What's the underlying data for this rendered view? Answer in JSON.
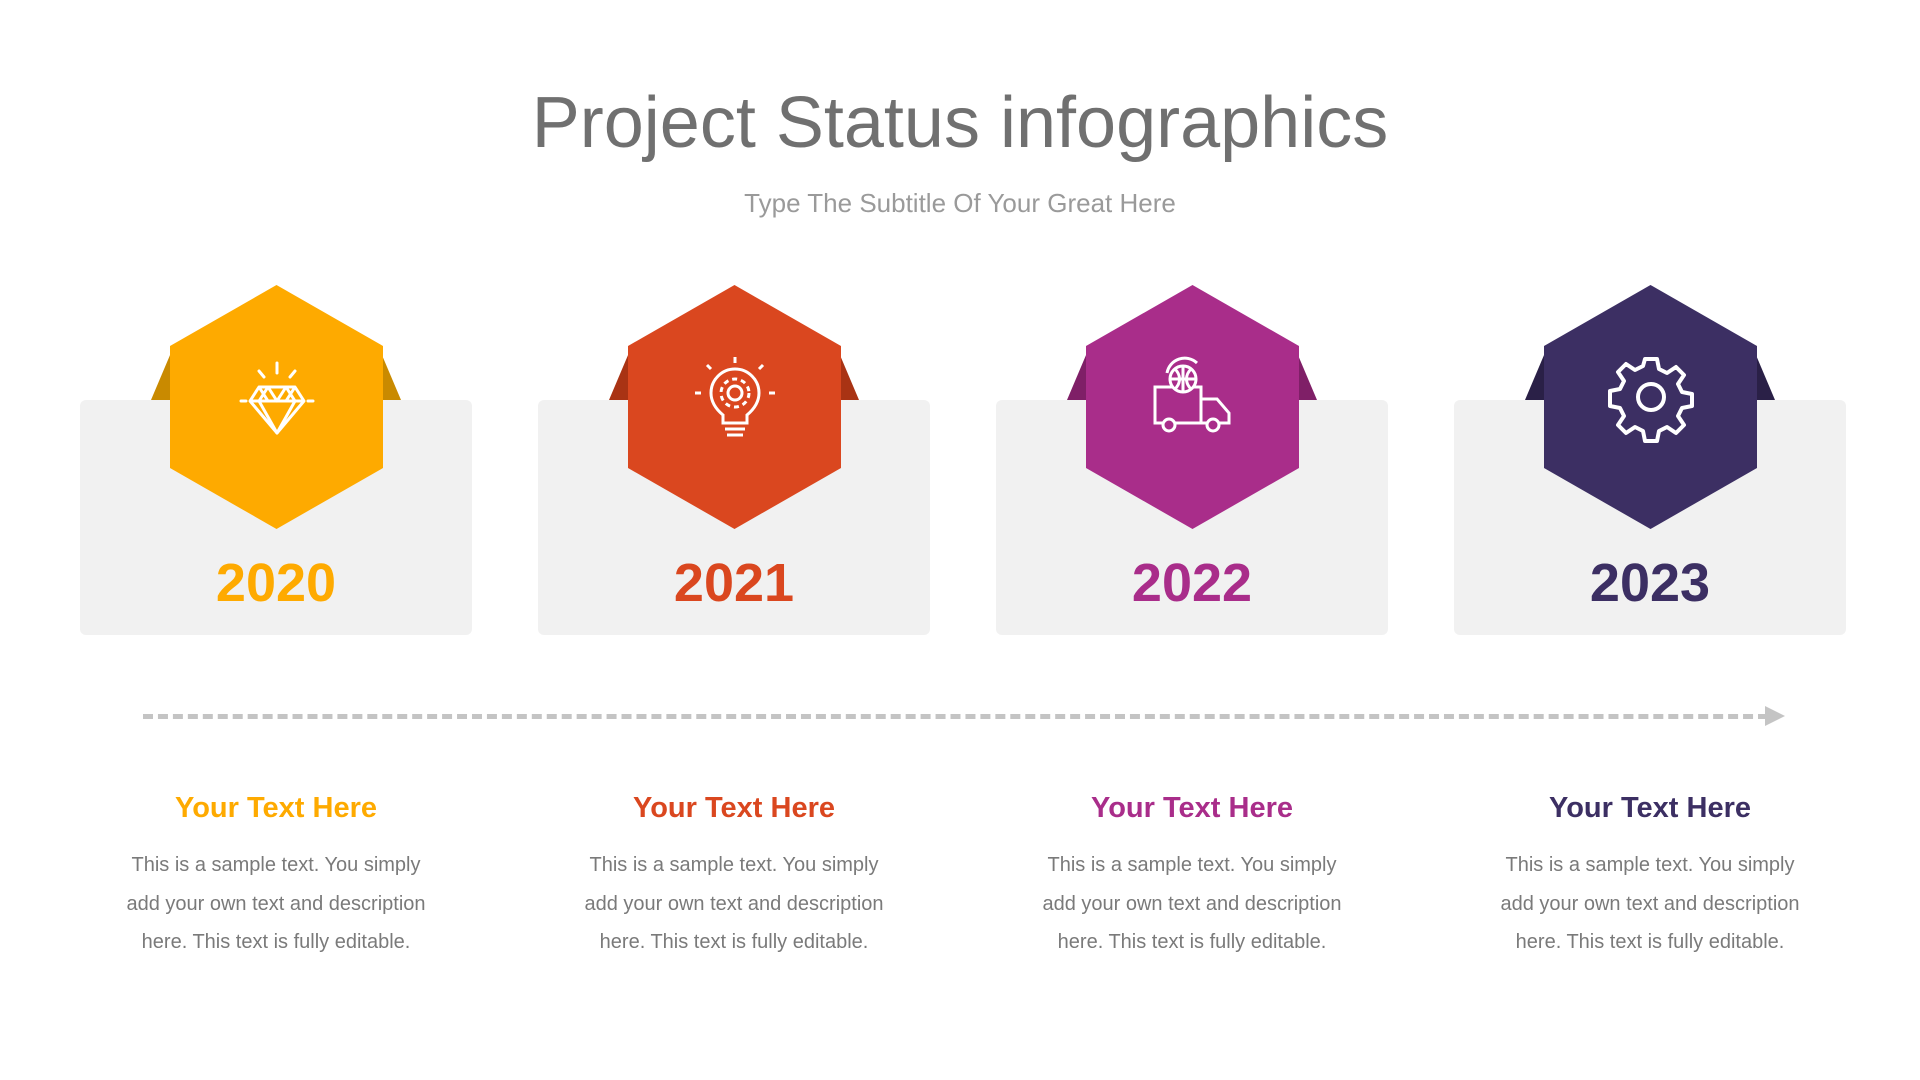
{
  "title": "Project Status infographics",
  "subtitle": "Type The Subtitle Of Your Great Here",
  "steps": [
    {
      "year": "2020",
      "heading": "Your Text Here",
      "body": "This is a sample text. You simply add your own text and description here. This text is fully editable.",
      "icon": "diamond-icon",
      "color": "#FEAA00",
      "flap_color": "#C98A00"
    },
    {
      "year": "2021",
      "heading": "Your Text Here",
      "body": "This is a sample text. You simply add your own text and description here. This text is fully editable.",
      "icon": "lightbulb-gear-icon",
      "color": "#DA471F",
      "flap_color": "#A93314"
    },
    {
      "year": "2022",
      "heading": "Your Text Here",
      "body": "This is a sample text. You simply add your own text and description here. This text is fully editable.",
      "icon": "delivery-truck-globe-icon",
      "color": "#A92D8A",
      "flap_color": "#7F1F67"
    },
    {
      "year": "2023",
      "heading": "Your Text Here",
      "body": "This is a sample text. You simply add your own text and description here. This text is fully editable.",
      "icon": "gear-icon",
      "color": "#3C2F63",
      "flap_color": "#2A2047"
    }
  ]
}
